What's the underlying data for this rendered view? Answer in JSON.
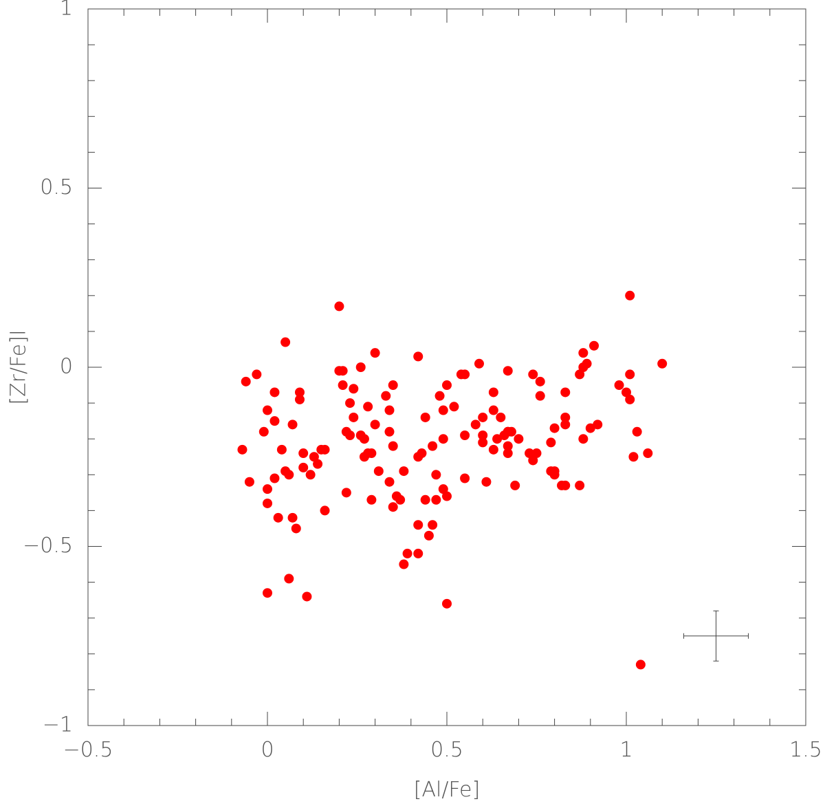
{
  "chart_data": {
    "type": "scatter",
    "xlabel": "[Al/Fe]",
    "ylabel": "[Zr/Fe]I",
    "color": "#ff0000",
    "xlim": [
      -0.5,
      1.5
    ],
    "ylim": [
      -1,
      1
    ],
    "xticks": [
      {
        "value": -0.5,
        "label": "−0.5"
      },
      0,
      0.5,
      1,
      1.5
    ],
    "yticks": [
      {
        "value": -1,
        "label": "−1"
      },
      {
        "value": -0.5,
        "label": "−0.5"
      },
      0,
      0.5,
      1
    ],
    "error_bar": {
      "x": 1.25,
      "y": -0.75,
      "xerr": 0.09,
      "yerr": 0.07
    },
    "x": [
      -0.07,
      -0.06,
      -0.05,
      -0.03,
      -0.01,
      0.0,
      0.0,
      0.0,
      0.0,
      0.02,
      0.02,
      0.02,
      0.03,
      0.04,
      0.05,
      0.05,
      0.06,
      0.06,
      0.07,
      0.07,
      0.08,
      0.09,
      0.09,
      0.1,
      0.1,
      0.11,
      0.12,
      0.13,
      0.14,
      0.15,
      0.16,
      0.16,
      0.2,
      0.2,
      0.21,
      0.21,
      0.22,
      0.22,
      0.23,
      0.23,
      0.24,
      0.24,
      0.26,
      0.26,
      0.27,
      0.27,
      0.28,
      0.28,
      0.29,
      0.29,
      0.3,
      0.3,
      0.31,
      0.33,
      0.34,
      0.34,
      0.34,
      0.35,
      0.35,
      0.35,
      0.36,
      0.37,
      0.38,
      0.38,
      0.39,
      0.42,
      0.42,
      0.42,
      0.42,
      0.43,
      0.44,
      0.44,
      0.45,
      0.46,
      0.46,
      0.47,
      0.47,
      0.48,
      0.49,
      0.49,
      0.49,
      0.5,
      0.5,
      0.5,
      0.52,
      0.54,
      0.55,
      0.55,
      0.55,
      0.58,
      0.59,
      0.6,
      0.6,
      0.6,
      0.61,
      0.63,
      0.63,
      0.63,
      0.64,
      0.65,
      0.66,
      0.67,
      0.67,
      0.67,
      0.67,
      0.67,
      0.68,
      0.69,
      0.7,
      0.73,
      0.74,
      0.75,
      0.74,
      0.76,
      0.76,
      0.79,
      0.79,
      0.8,
      0.8,
      0.8,
      0.82,
      0.83,
      0.83,
      0.83,
      0.83,
      0.87,
      0.87,
      0.88,
      0.88,
      0.88,
      0.89,
      0.9,
      0.91,
      0.92,
      0.98,
      1.0,
      1.01,
      1.01,
      1.01,
      1.02,
      1.03,
      1.04,
      1.06,
      1.1
    ],
    "values": [
      -0.23,
      -0.04,
      -0.32,
      -0.02,
      -0.18,
      -0.38,
      -0.12,
      -0.34,
      -0.63,
      -0.07,
      -0.15,
      -0.31,
      -0.42,
      -0.23,
      0.07,
      -0.29,
      -0.59,
      -0.3,
      -0.16,
      -0.42,
      -0.45,
      -0.07,
      -0.09,
      -0.24,
      -0.28,
      -0.64,
      -0.3,
      -0.25,
      -0.27,
      -0.23,
      -0.23,
      -0.4,
      -0.01,
      0.17,
      -0.01,
      -0.05,
      -0.18,
      -0.35,
      -0.19,
      -0.1,
      -0.06,
      -0.14,
      0.0,
      -0.19,
      -0.25,
      -0.2,
      -0.24,
      -0.11,
      -0.24,
      -0.37,
      -0.16,
      0.04,
      -0.29,
      -0.08,
      -0.12,
      -0.32,
      -0.18,
      -0.05,
      -0.22,
      -0.39,
      -0.36,
      -0.37,
      -0.55,
      -0.29,
      -0.52,
      -0.52,
      -0.44,
      -0.25,
      0.03,
      -0.24,
      -0.14,
      -0.37,
      -0.47,
      -0.44,
      -0.22,
      -0.3,
      -0.37,
      -0.08,
      -0.2,
      -0.12,
      -0.34,
      -0.05,
      -0.36,
      -0.66,
      -0.11,
      -0.02,
      -0.02,
      -0.19,
      -0.31,
      -0.16,
      0.01,
      -0.14,
      -0.19,
      -0.21,
      -0.32,
      -0.07,
      -0.12,
      -0.23,
      -0.2,
      -0.14,
      -0.19,
      -0.18,
      -0.22,
      -0.24,
      -0.01,
      -0.18,
      -0.18,
      -0.33,
      -0.2,
      -0.24,
      -0.26,
      -0.24,
      -0.02,
      -0.04,
      -0.08,
      -0.21,
      -0.29,
      -0.17,
      -0.3,
      -0.29,
      -0.33,
      -0.07,
      -0.14,
      -0.16,
      -0.33,
      -0.02,
      -0.33,
      0.04,
      0.0,
      -0.2,
      0.01,
      -0.17,
      0.06,
      -0.16,
      -0.05,
      -0.07,
      -0.02,
      -0.09,
      0.2,
      -0.25,
      -0.18,
      -0.83,
      -0.24,
      0.01
    ]
  }
}
